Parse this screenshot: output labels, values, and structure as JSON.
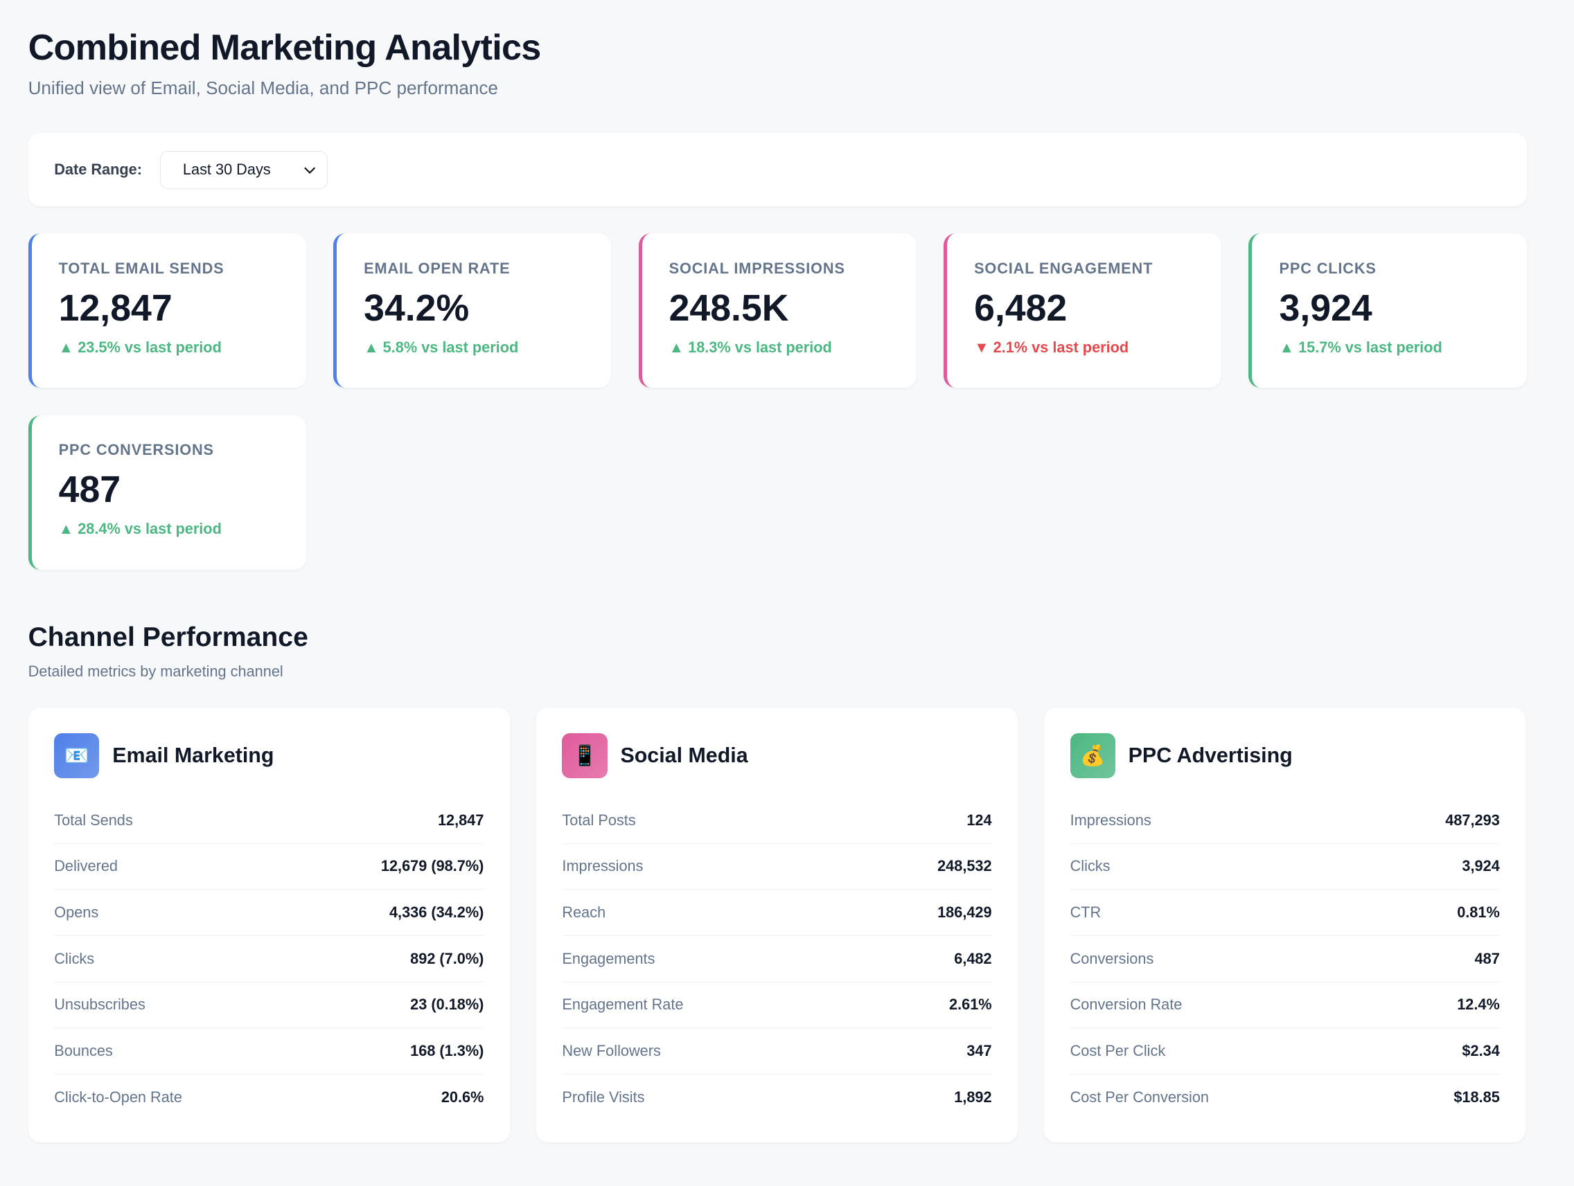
{
  "header": {
    "title": "Combined Marketing Analytics",
    "subtitle": "Unified view of Email, Social Media, and PPC performance"
  },
  "filter": {
    "label": "Date Range:",
    "value": "Last 30 Days"
  },
  "kpis": [
    {
      "label": "TOTAL EMAIL SENDS",
      "value": "12,847",
      "change": "▲ 23.5% vs last period",
      "trend": "up",
      "color": "#4f7fe8"
    },
    {
      "label": "EMAIL OPEN RATE",
      "value": "34.2%",
      "change": "▲ 5.8% vs last period",
      "trend": "up",
      "color": "#4f7fe8"
    },
    {
      "label": "SOCIAL IMPRESSIONS",
      "value": "248.5K",
      "change": "▲ 18.3% vs last period",
      "trend": "up",
      "color": "#e05a9b"
    },
    {
      "label": "SOCIAL ENGAGEMENT",
      "value": "6,482",
      "change": "▼ 2.1% vs last period",
      "trend": "down",
      "color": "#e05a9b"
    },
    {
      "label": "PPC CLICKS",
      "value": "3,924",
      "change": "▲ 15.7% vs last period",
      "trend": "up",
      "color": "#4cb782"
    },
    {
      "label": "PPC CONVERSIONS",
      "value": "487",
      "change": "▲ 28.4% vs last period",
      "trend": "up",
      "color": "#4cb782"
    }
  ],
  "section": {
    "title": "Channel Performance",
    "subtitle": "Detailed metrics by marketing channel"
  },
  "channels": [
    {
      "title": "Email Marketing",
      "icon": "📧",
      "color": "#4f7fe8",
      "rows": [
        [
          "Total Sends",
          "12,847"
        ],
        [
          "Delivered",
          "12,679 (98.7%)"
        ],
        [
          "Opens",
          "4,336 (34.2%)"
        ],
        [
          "Clicks",
          "892 (7.0%)"
        ],
        [
          "Unsubscribes",
          "23 (0.18%)"
        ],
        [
          "Bounces",
          "168 (1.3%)"
        ],
        [
          "Click-to-Open Rate",
          "20.6%"
        ]
      ]
    },
    {
      "title": "Social Media",
      "icon": "📱",
      "color": "#e05a9b",
      "rows": [
        [
          "Total Posts",
          "124"
        ],
        [
          "Impressions",
          "248,532"
        ],
        [
          "Reach",
          "186,429"
        ],
        [
          "Engagements",
          "6,482"
        ],
        [
          "Engagement Rate",
          "2.61%"
        ],
        [
          "New Followers",
          "347"
        ],
        [
          "Profile Visits",
          "1,892"
        ]
      ]
    },
    {
      "title": "PPC Advertising",
      "icon": "💰",
      "color": "#4cb782",
      "rows": [
        [
          "Impressions",
          "487,293"
        ],
        [
          "Clicks",
          "3,924"
        ],
        [
          "CTR",
          "0.81%"
        ],
        [
          "Conversions",
          "487"
        ],
        [
          "Conversion Rate",
          "12.4%"
        ],
        [
          "Cost Per Click",
          "$2.34"
        ],
        [
          "Cost Per Conversion",
          "$18.85"
        ]
      ]
    }
  ]
}
